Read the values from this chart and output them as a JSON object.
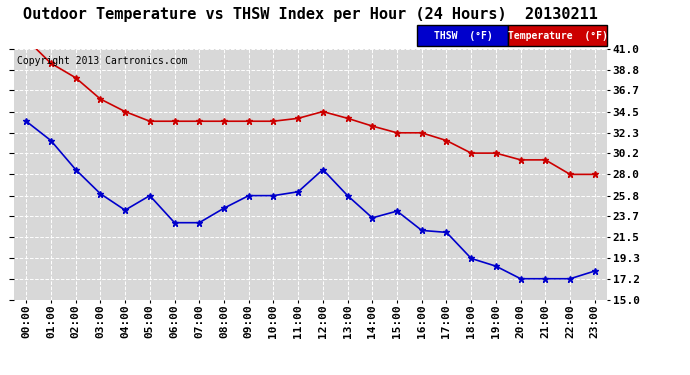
{
  "title": "Outdoor Temperature vs THSW Index per Hour (24 Hours)  20130211",
  "copyright": "Copyright 2013 Cartronics.com",
  "x_labels": [
    "00:00",
    "01:00",
    "02:00",
    "03:00",
    "04:00",
    "05:00",
    "06:00",
    "07:00",
    "08:00",
    "09:00",
    "10:00",
    "11:00",
    "12:00",
    "13:00",
    "14:00",
    "15:00",
    "16:00",
    "17:00",
    "18:00",
    "19:00",
    "20:00",
    "21:00",
    "22:00",
    "23:00"
  ],
  "thsw": [
    33.5,
    31.5,
    28.5,
    26.0,
    24.3,
    25.8,
    23.0,
    23.0,
    24.5,
    25.8,
    25.8,
    26.2,
    28.5,
    25.8,
    23.5,
    24.2,
    22.2,
    22.0,
    19.3,
    18.5,
    17.2,
    17.2,
    17.2,
    18.0
  ],
  "temp": [
    42.0,
    39.5,
    38.0,
    35.8,
    34.5,
    33.5,
    33.5,
    33.5,
    33.5,
    33.5,
    33.5,
    33.8,
    34.5,
    33.8,
    33.0,
    32.3,
    32.3,
    31.5,
    30.2,
    30.2,
    29.5,
    29.5,
    28.0,
    28.0
  ],
  "ylim": [
    15.0,
    41.0
  ],
  "yticks": [
    15.0,
    17.2,
    19.3,
    21.5,
    23.7,
    25.8,
    28.0,
    30.2,
    32.3,
    34.5,
    36.7,
    38.8,
    41.0
  ],
  "thsw_color": "#0000cc",
  "temp_color": "#cc0000",
  "bg_color": "#ffffff",
  "plot_bg_color": "#d8d8d8",
  "grid_color": "#ffffff",
  "title_fontsize": 11,
  "copyright_fontsize": 7,
  "tick_fontsize": 8
}
